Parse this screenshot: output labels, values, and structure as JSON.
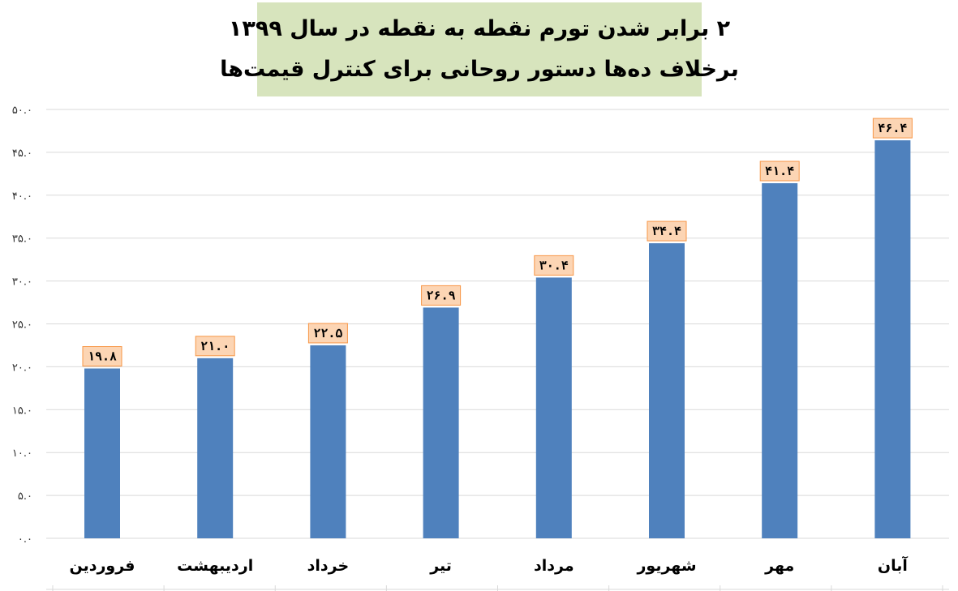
{
  "colors": {
    "bar": "#4f81bd",
    "title_bg": "#d7e4bd",
    "label_bg": "#fcd5b4",
    "label_border": "#f79646",
    "grid": "#d9d9d9"
  },
  "chart_data": {
    "type": "bar",
    "title_lines": [
      "۲ برابر شدن تورم نقطه به نقطه در سال ۱۳۹۹",
      "برخلاف ده‌ها دستور روحانی برای کنترل قیمت‌ها"
    ],
    "categories": [
      "فروردین",
      "اردیبهشت",
      "خرداد",
      "تیر",
      "مرداد",
      "شهریور",
      "مهر",
      "آبان"
    ],
    "values": [
      19.8,
      21.0,
      22.5,
      26.9,
      30.4,
      34.4,
      41.4,
      46.4
    ],
    "data_labels": [
      "۱۹.۸",
      "۲۱.۰",
      "۲۲.۵",
      "۲۶.۹",
      "۳۰.۴",
      "۳۴.۴",
      "۴۱.۴",
      "۴۶.۴"
    ],
    "y_ticks": [
      0,
      5,
      10,
      15,
      20,
      25,
      30,
      35,
      40,
      45,
      50
    ],
    "y_tick_labels": [
      "۰.۰",
      "۵.۰",
      "۱۰.۰",
      "۱۵.۰",
      "۲۰.۰",
      "۲۵.۰",
      "۳۰.۰",
      "۳۵.۰",
      "۴۰.۰",
      "۴۵.۰",
      "۵۰.۰"
    ],
    "ylim": [
      0,
      50
    ],
    "grid": true,
    "legend": "none"
  }
}
